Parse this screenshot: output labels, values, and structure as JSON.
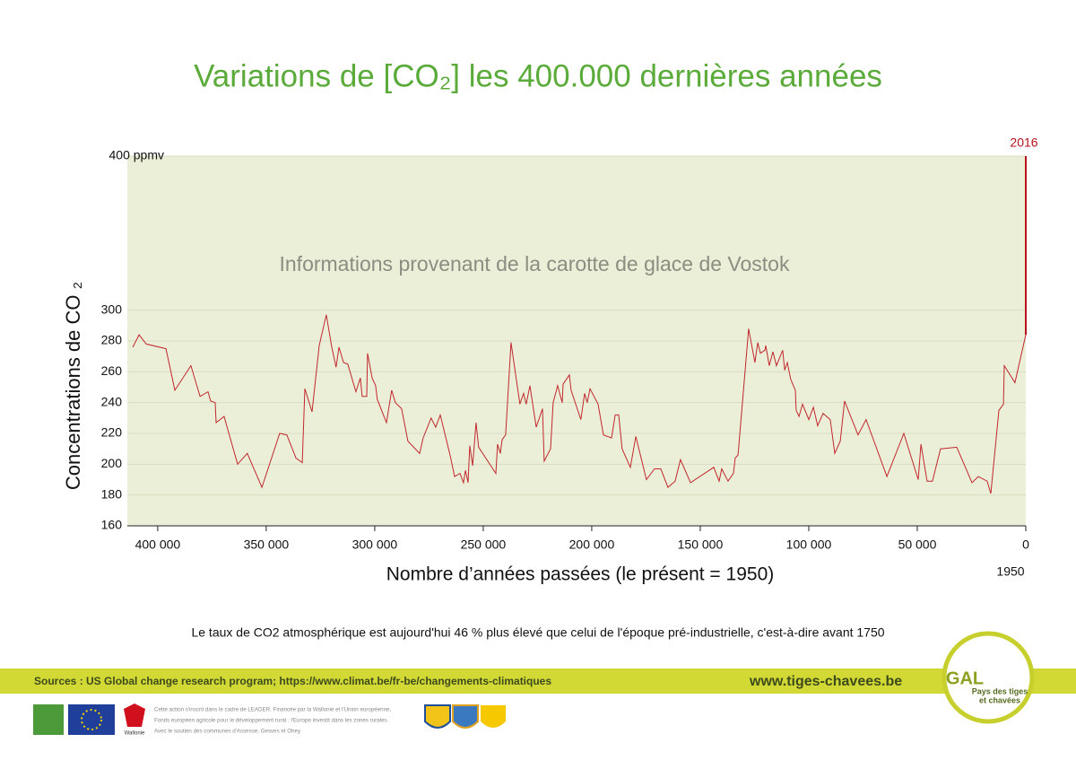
{
  "chart_data": {
    "type": "line",
    "title": "Variations de [CO₂] les 400.000 dernières années",
    "annotation": "Informations provenant de la carotte de glace de Vostok",
    "y_label": "Concentrations de CO ₂",
    "x_label": "Nombre d’années passées (le présent = 1950)",
    "x_end_label": "1950",
    "highlight": {
      "label": "2016",
      "x": 0,
      "value": 400,
      "color": "#b5121b"
    },
    "note": "Le taux de CO2 atmosphérique est aujourd'hui 46 % plus élevé que celui de l'époque pré-industrielle, c'est-à-dire avant 1750",
    "xlim": [
      414000,
      0
    ],
    "ylim": [
      160,
      400
    ],
    "xticks": [
      {
        "value": 400000,
        "label": "400 000"
      },
      {
        "value": 350000,
        "label": "350 000"
      },
      {
        "value": 300000,
        "label": "300 000"
      },
      {
        "value": 250000,
        "label": "250 000"
      },
      {
        "value": 200000,
        "label": "200 000"
      },
      {
        "value": 150000,
        "label": "150 000"
      },
      {
        "value": 100000,
        "label": "100 000"
      },
      {
        "value": 50000,
        "label": "50 000"
      },
      0
    ],
    "yticks": [
      160,
      180,
      200,
      220,
      240,
      260,
      280,
      300,
      {
        "value": 400,
        "label": "400 ppmv"
      }
    ],
    "grid": true,
    "background": "#ecefd8",
    "x": [
      411500,
      408600,
      405300,
      396200,
      392100,
      384700,
      380500,
      376800,
      375600,
      373500,
      373100,
      369400,
      363200,
      358700,
      352000,
      343800,
      340500,
      336300,
      333400,
      332200,
      328900,
      325600,
      322300,
      319800,
      317800,
      316500,
      314400,
      312400,
      308700,
      306600,
      305800,
      303700,
      303300,
      301200,
      299600,
      298800,
      294600,
      292200,
      290500,
      287600,
      284700,
      279300,
      277700,
      274000,
      271900,
      269800,
      265300,
      263200,
      260700,
      259100,
      258200,
      257000,
      256200,
      254900,
      253300,
      252100,
      244200,
      243400,
      242100,
      241300,
      239700,
      237200,
      233100,
      231400,
      230200,
      228500,
      225600,
      222700,
      221900,
      219000,
      217800,
      215700,
      213600,
      213200,
      210300,
      209500,
      205000,
      203300,
      202100,
      200800,
      197100,
      194600,
      190900,
      189200,
      187600,
      186000,
      182200,
      179700,
      174800,
      171100,
      168200,
      164900,
      161600,
      159100,
      154500,
      143800,
      141300,
      140100,
      137200,
      134700,
      133900,
      132600,
      127700,
      124800,
      123500,
      122300,
      120200,
      119800,
      118200,
      116500,
      114900,
      112000,
      111100,
      109900,
      108300,
      106200,
      105800,
      104500,
      102900,
      100000,
      97900,
      95900,
      93400,
      90100,
      88000,
      85500,
      83500,
      77300,
      73600,
      64000,
      56200,
      49600,
      48300,
      45500,
      43000,
      39300,
      31800,
      24800,
      21900,
      17800,
      16100,
      12400,
      10300,
      9900,
      5000,
      0
    ],
    "series": [
      {
        "color": "#c0272d",
        "values": [
          276,
          284,
          278,
          275,
          248,
          264,
          244,
          247,
          241,
          240,
          227,
          231,
          200,
          207,
          185,
          220,
          219,
          204,
          201,
          249,
          234,
          277,
          297,
          276,
          263,
          276,
          266,
          265,
          247,
          256,
          244,
          244,
          272,
          256,
          251,
          242,
          227,
          248,
          240,
          236,
          215,
          207,
          217,
          230,
          224,
          232,
          206,
          192,
          194,
          188,
          196,
          188,
          212,
          199,
          227,
          211,
          194,
          213,
          207,
          216,
          219,
          279,
          239,
          246,
          239,
          251,
          224,
          236,
          202,
          210,
          240,
          251,
          240,
          252,
          258,
          248,
          229,
          246,
          240,
          249,
          239,
          219,
          217,
          232,
          232,
          210,
          198,
          218,
          190,
          197,
          197,
          185,
          189,
          203,
          188,
          198,
          189,
          197,
          189,
          194,
          204,
          206,
          288,
          266,
          279,
          272,
          274,
          277,
          264,
          273,
          264,
          274,
          261,
          266,
          255,
          248,
          235,
          231,
          239,
          229,
          237,
          225,
          233,
          229,
          207,
          215,
          241,
          219,
          229,
          192,
          220,
          190,
          213,
          189,
          189,
          210,
          211,
          188,
          192,
          189,
          181,
          235,
          239,
          264,
          253,
          284
        ]
      }
    ]
  },
  "footer": {
    "sources": "Sources : US Global change research program; https://www.climat.be/fr-be/changements-climatiques",
    "website": "www.tiges-chavees.be",
    "fineprint": [
      "Cette action s'inscrit dans le cadre de LEADER. Financée par la Wallonie et l'Union européenne,",
      "Fonds européen agricole pour le développement rural : l'Europe investit dans les zones rurales.",
      "Avec le soutien des communes d'Assesse, Gesves et Ohey"
    ],
    "wallonie": "Wallonie",
    "gal": "GAL",
    "gal_line1": "Pays des tiges",
    "gal_line2": "et chavées"
  }
}
